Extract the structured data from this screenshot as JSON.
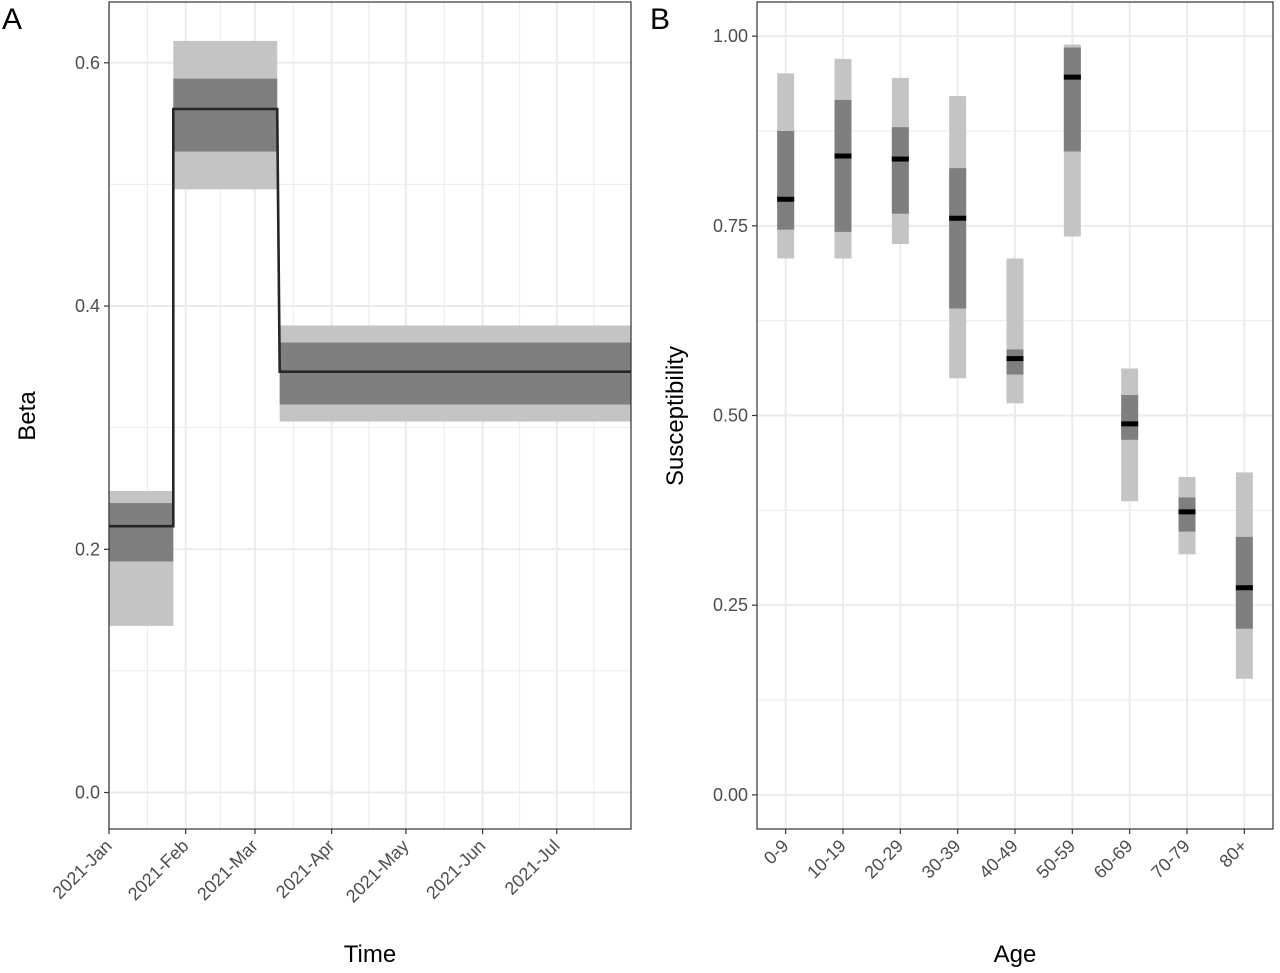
{
  "chart_data": [
    {
      "panel_label": "A",
      "type": "line",
      "subtype": "step function with credible-interval bands",
      "title": "",
      "xlabel": "Time",
      "ylabel": "Beta",
      "x_ticks": [
        "2021-Jan",
        "2021-Feb",
        "2021-Mar",
        "2021-Apr",
        "2021-May",
        "2021-Jun",
        "2021-Jul"
      ],
      "xlim": [
        "2021-01-01",
        "2021-07-31"
      ],
      "y_ticks": [
        "0.0",
        "0.2",
        "0.4",
        "0.6"
      ],
      "ylim": [
        -0.03,
        0.65
      ],
      "grid": true,
      "segments": [
        {
          "start": "2021-01-01",
          "end": "2021-01-27",
          "median": 0.219,
          "inner": [
            0.19,
            0.238
          ],
          "outer": [
            0.137,
            0.248
          ]
        },
        {
          "start": "2021-01-27",
          "end": "2021-03-10",
          "median": 0.562,
          "inner": [
            0.527,
            0.587
          ],
          "outer": [
            0.496,
            0.618
          ]
        },
        {
          "start": "2021-03-11",
          "end": "2021-07-31",
          "median": 0.346,
          "inner": [
            0.319,
            0.37
          ],
          "outer": [
            0.305,
            0.384
          ]
        }
      ],
      "colors": {
        "line": "#262626",
        "inner": "#7f7f7f",
        "outer": "#c4c4c4"
      }
    },
    {
      "panel_label": "B",
      "type": "bar",
      "subtype": "interval plot",
      "title": "",
      "xlabel": "Age",
      "ylabel": "Susceptibility",
      "categories": [
        "0-9",
        "10-19",
        "20-29",
        "30-39",
        "40-49",
        "50-59",
        "60-69",
        "70-79",
        "80+"
      ],
      "y_ticks": [
        "0.00",
        "0.25",
        "0.50",
        "0.75",
        "1.00"
      ],
      "ylim": [
        -0.045,
        1.045
      ],
      "grid": true,
      "median": [
        0.785,
        0.842,
        0.838,
        0.76,
        0.575,
        0.946,
        0.489,
        0.373,
        0.273
      ],
      "inner": [
        [
          0.745,
          0.875
        ],
        [
          0.742,
          0.916
        ],
        [
          0.766,
          0.88
        ],
        [
          0.641,
          0.826
        ],
        [
          0.554,
          0.587
        ],
        [
          0.848,
          0.985
        ],
        [
          0.468,
          0.527
        ],
        [
          0.347,
          0.392
        ],
        [
          0.219,
          0.34
        ]
      ],
      "outer": [
        [
          0.707,
          0.951
        ],
        [
          0.707,
          0.97
        ],
        [
          0.726,
          0.945
        ],
        [
          0.549,
          0.921
        ],
        [
          0.516,
          0.707
        ],
        [
          0.736,
          0.989
        ],
        [
          0.387,
          0.562
        ],
        [
          0.317,
          0.419
        ],
        [
          0.153,
          0.425
        ]
      ],
      "colors": {
        "median": "#000000",
        "inner": "#7f7f7f",
        "outer": "#c4c4c4"
      }
    }
  ]
}
